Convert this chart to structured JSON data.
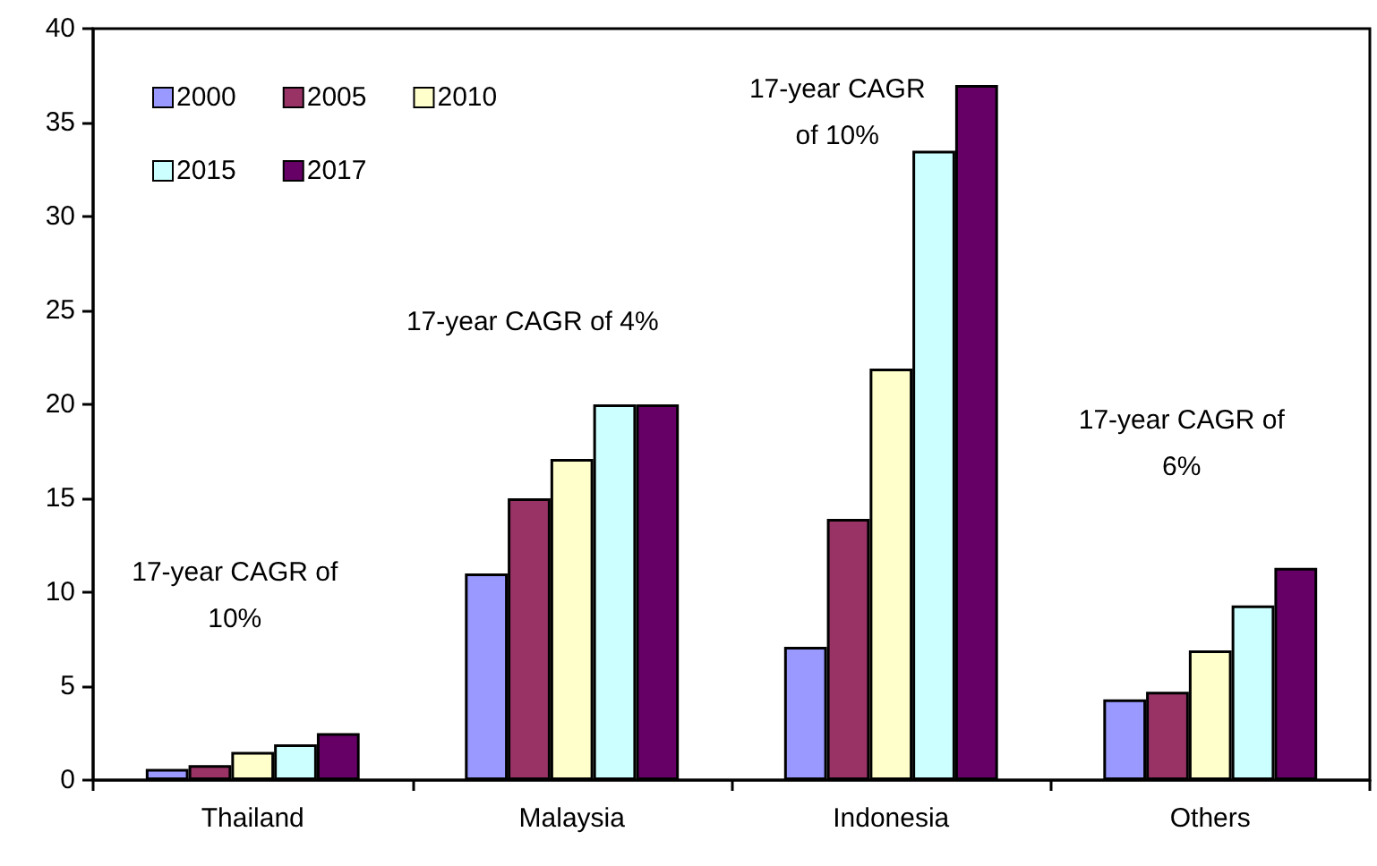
{
  "chart_data": {
    "type": "bar",
    "categories": [
      "Thailand",
      "Malaysia",
      "Indonesia",
      "Others"
    ],
    "series": [
      {
        "name": "2000",
        "color": "#9999ff",
        "values": [
          0.6,
          11,
          7.1,
          4.3
        ]
      },
      {
        "name": "2005",
        "color": "#993366",
        "values": [
          0.8,
          15,
          13.9,
          4.7
        ]
      },
      {
        "name": "2010",
        "color": "#ffffcc",
        "values": [
          1.5,
          17.1,
          21.9,
          6.9
        ]
      },
      {
        "name": "2015",
        "color": "#ccffff",
        "values": [
          1.9,
          20,
          33.5,
          9.3
        ]
      },
      {
        "name": "2017",
        "color": "#660066",
        "values": [
          2.5,
          20,
          37,
          11.3
        ]
      }
    ],
    "ylim": [
      0,
      40
    ],
    "yticks": [
      0,
      5,
      10,
      15,
      20,
      25,
      30,
      35,
      40
    ],
    "grid": false,
    "legend": "top left",
    "annotations": [
      "17-year CAGR of\n10%",
      "17-year CAGR of 4%",
      "17-year CAGR\nof 10%",
      "17-year CAGR of\n6%"
    ]
  }
}
